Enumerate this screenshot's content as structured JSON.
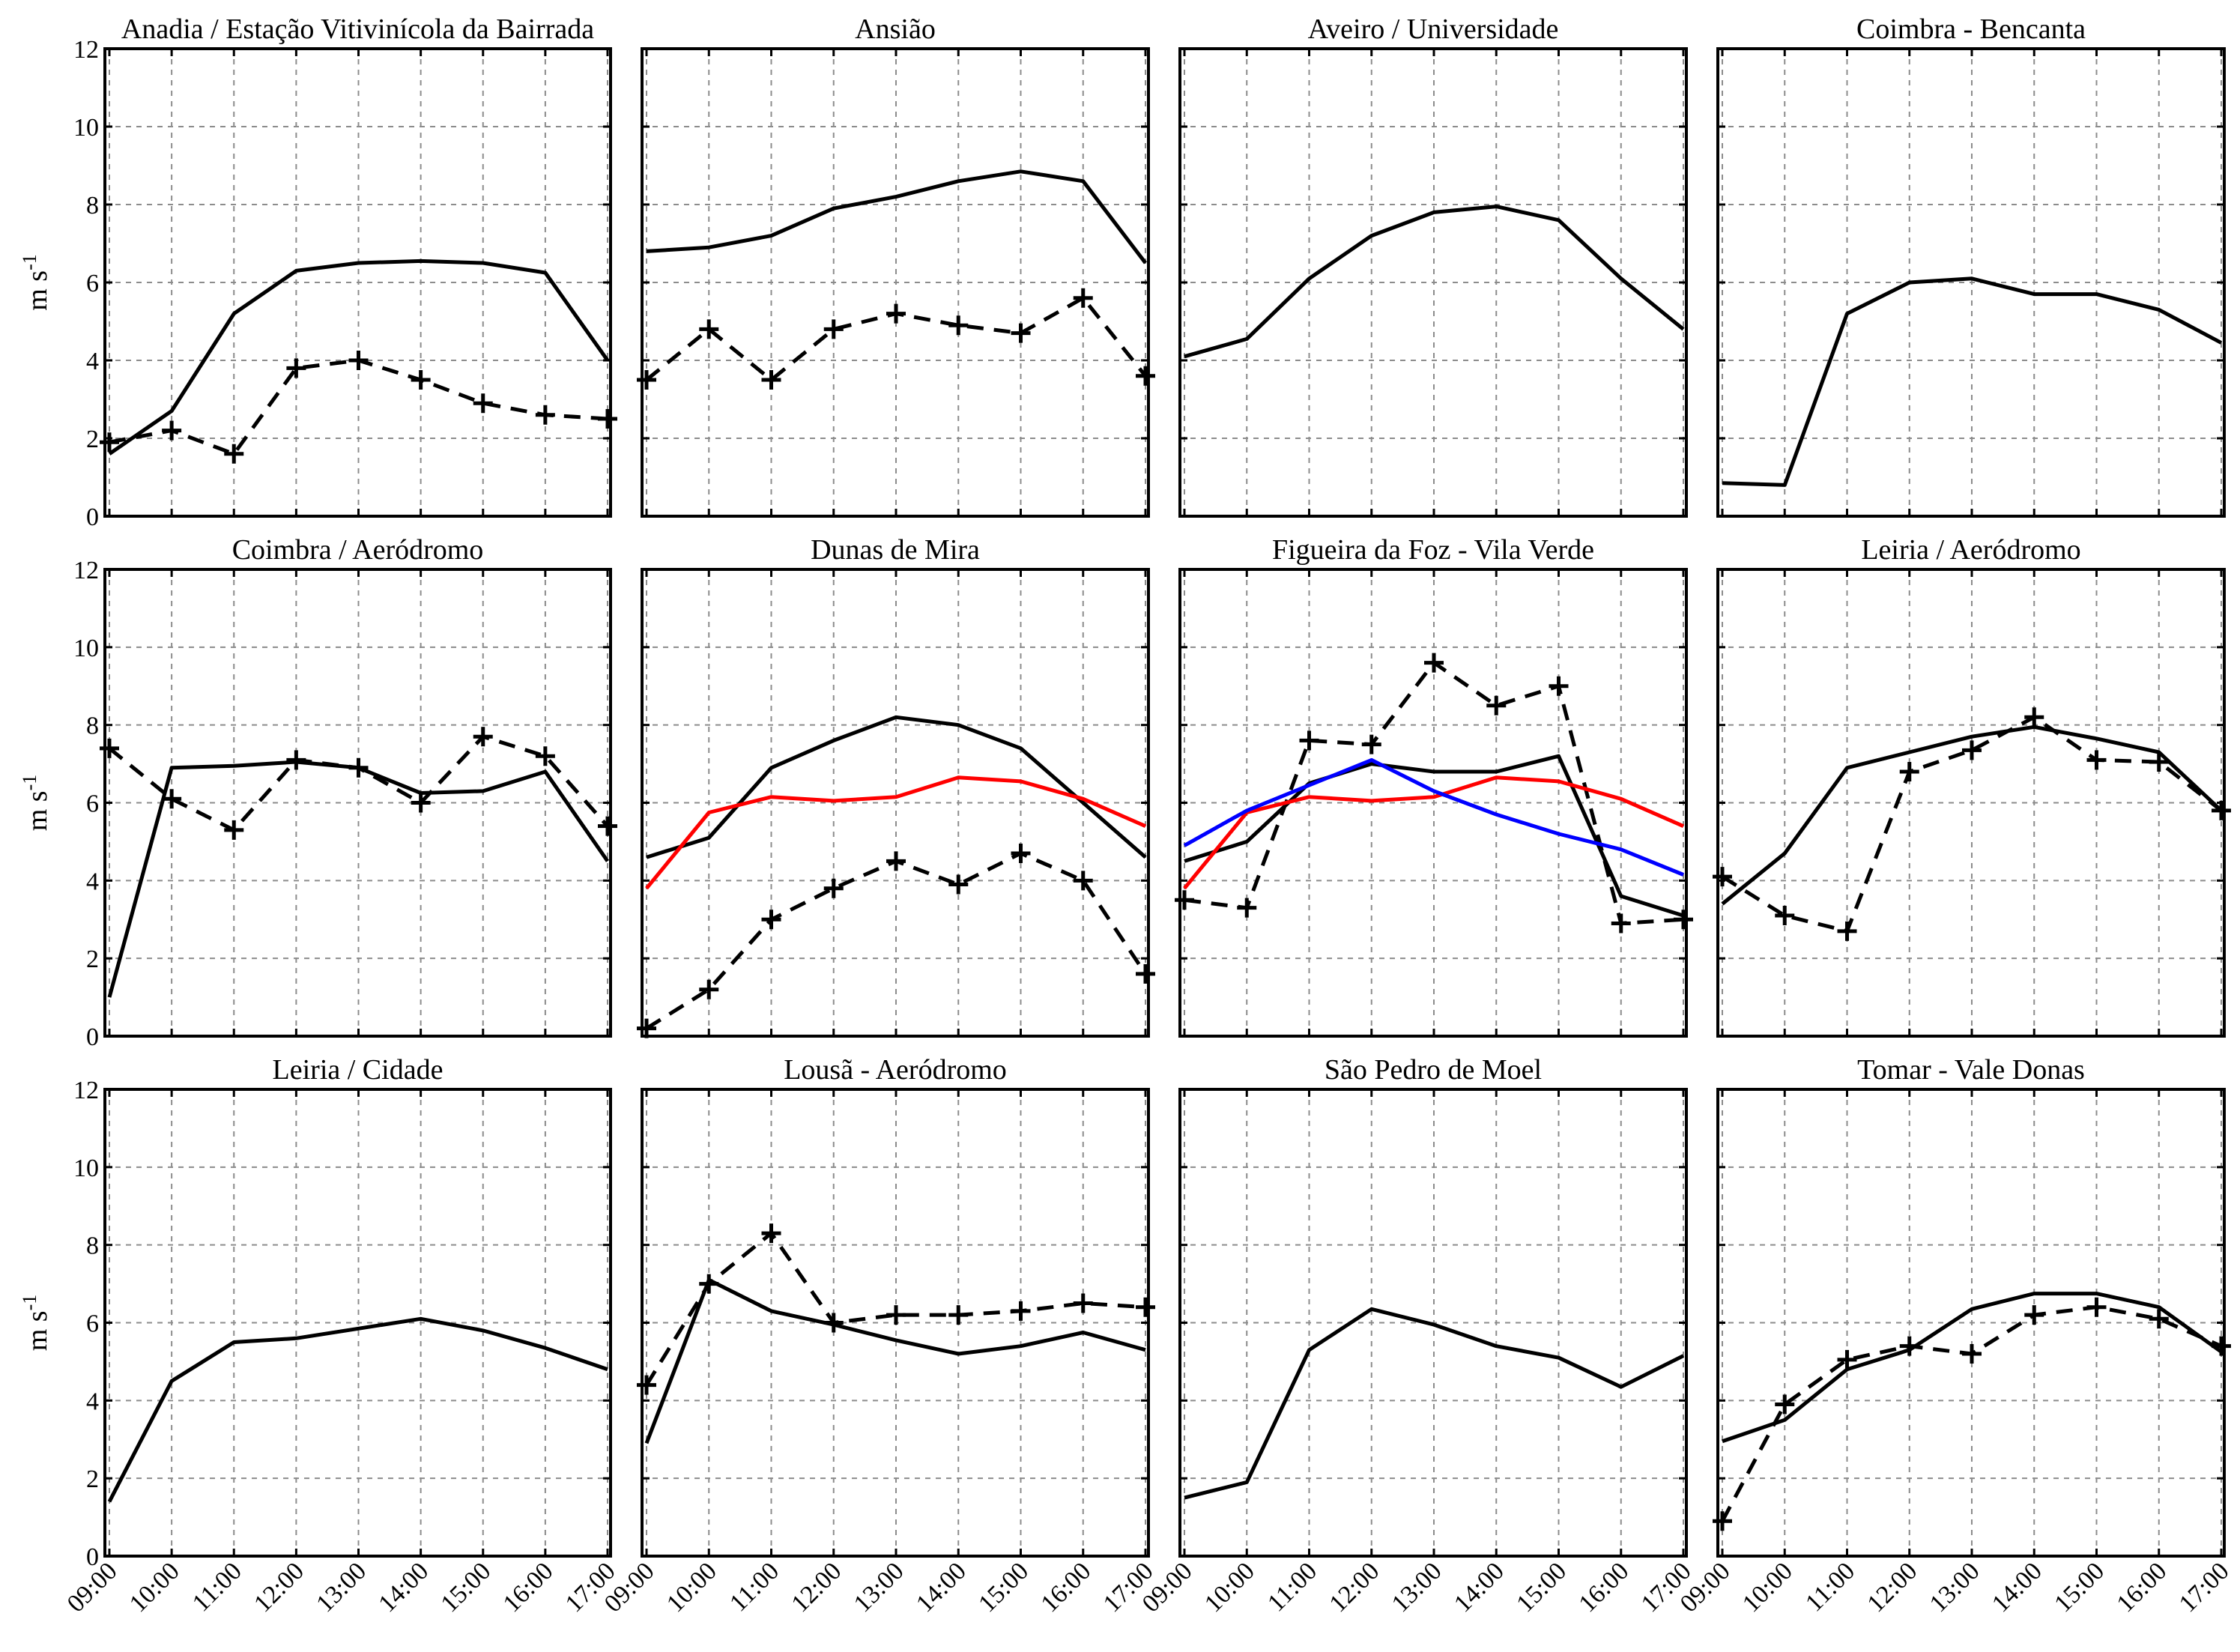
{
  "chart_data": {
    "type": "line",
    "layout": "3x4 grid of subplots",
    "ylabel": "m s",
    "ylabel_superscript": "-1",
    "ylim": [
      0,
      12
    ],
    "yticks": [
      "0",
      "2",
      "4",
      "6",
      "8",
      "10",
      "12"
    ],
    "x": [
      "09:00",
      "10:00",
      "11:00",
      "12:00",
      "13:00",
      "14:00",
      "15:00",
      "16:00",
      "17:00"
    ],
    "series_styles": {
      "black_solid": "#000000",
      "black_dashed_plus": "#000000",
      "red": "#ff0000",
      "blue": "#0000ff"
    },
    "panels": [
      {
        "title": "Anadia / Estação Vitivinícola da Bairrada",
        "series": [
          {
            "name": "black-solid",
            "style": "solid",
            "color": "#000000",
            "values": [
              1.6,
              2.7,
              5.2,
              6.3,
              6.5,
              6.55,
              6.5,
              6.25,
              4.0
            ]
          },
          {
            "name": "black-dashed-plus",
            "style": "dashed-plus",
            "color": "#000000",
            "values": [
              1.9,
              2.2,
              1.6,
              3.8,
              4.0,
              3.5,
              2.9,
              2.6,
              2.5
            ]
          }
        ]
      },
      {
        "title": "Ansião",
        "series": [
          {
            "name": "black-solid",
            "style": "solid",
            "color": "#000000",
            "values": [
              6.8,
              6.9,
              7.2,
              7.9,
              8.2,
              8.6,
              8.85,
              8.6,
              6.5
            ]
          },
          {
            "name": "black-dashed-plus",
            "style": "dashed-plus",
            "color": "#000000",
            "values": [
              3.5,
              4.8,
              3.5,
              4.8,
              5.2,
              4.9,
              4.7,
              5.6,
              3.6
            ]
          }
        ]
      },
      {
        "title": "Aveiro / Universidade",
        "series": [
          {
            "name": "black-solid",
            "style": "solid",
            "color": "#000000",
            "values": [
              4.1,
              4.55,
              6.1,
              7.2,
              7.8,
              7.95,
              7.6,
              6.1,
              4.8
            ]
          }
        ]
      },
      {
        "title": "Coimbra - Bencanta",
        "series": [
          {
            "name": "black-solid",
            "style": "solid",
            "color": "#000000",
            "values": [
              0.85,
              0.8,
              5.2,
              6.0,
              6.1,
              5.7,
              5.7,
              5.3,
              4.45
            ]
          }
        ]
      },
      {
        "title": "Coimbra / Aeródromo",
        "series": [
          {
            "name": "black-solid",
            "style": "solid",
            "color": "#000000",
            "values": [
              1.0,
              6.9,
              6.95,
              7.05,
              6.9,
              6.25,
              6.3,
              6.8,
              4.5
            ]
          },
          {
            "name": "black-dashed-plus",
            "style": "dashed-plus",
            "color": "#000000",
            "values": [
              7.4,
              6.1,
              5.3,
              7.1,
              6.9,
              6.0,
              7.7,
              7.2,
              5.4
            ]
          }
        ]
      },
      {
        "title": "Dunas de Mira",
        "series": [
          {
            "name": "black-solid",
            "style": "solid",
            "color": "#000000",
            "values": [
              4.6,
              5.1,
              6.9,
              7.6,
              8.2,
              8.0,
              7.4,
              6.0,
              4.6
            ]
          },
          {
            "name": "black-dashed-plus",
            "style": "dashed-plus",
            "color": "#000000",
            "values": [
              0.2,
              1.2,
              3.0,
              3.8,
              4.5,
              3.9,
              4.7,
              4.0,
              1.6
            ]
          },
          {
            "name": "red",
            "style": "solid",
            "color": "#ff0000",
            "values": [
              3.8,
              5.75,
              6.15,
              6.05,
              6.15,
              6.65,
              6.55,
              6.1,
              5.4
            ]
          }
        ]
      },
      {
        "title": "Figueira da Foz - Vila Verde",
        "series": [
          {
            "name": "black-solid",
            "style": "solid",
            "color": "#000000",
            "values": [
              4.5,
              5.0,
              6.5,
              7.0,
              6.8,
              6.8,
              7.2,
              3.6,
              3.1
            ]
          },
          {
            "name": "black-dashed-plus",
            "style": "dashed-plus",
            "color": "#000000",
            "values": [
              3.5,
              3.3,
              7.6,
              7.5,
              9.6,
              8.5,
              9.0,
              2.9,
              3.0
            ]
          },
          {
            "name": "red",
            "style": "solid",
            "color": "#ff0000",
            "values": [
              3.8,
              5.75,
              6.15,
              6.05,
              6.15,
              6.65,
              6.55,
              6.1,
              5.4
            ]
          },
          {
            "name": "blue",
            "style": "solid",
            "color": "#0000ff",
            "values": [
              4.9,
              5.8,
              6.45,
              7.1,
              6.3,
              5.7,
              5.2,
              4.8,
              4.15
            ]
          }
        ]
      },
      {
        "title": "Leiria / Aeródromo",
        "series": [
          {
            "name": "black-solid",
            "style": "solid",
            "color": "#000000",
            "values": [
              3.4,
              4.7,
              6.9,
              7.3,
              7.7,
              7.95,
              7.65,
              7.3,
              5.8
            ]
          },
          {
            "name": "black-dashed-plus",
            "style": "dashed-plus",
            "color": "#000000",
            "values": [
              4.1,
              3.1,
              2.7,
              6.8,
              7.35,
              8.2,
              7.1,
              7.05,
              5.8
            ]
          }
        ]
      },
      {
        "title": "Leiria / Cidade",
        "series": [
          {
            "name": "black-solid",
            "style": "solid",
            "color": "#000000",
            "values": [
              1.4,
              4.5,
              5.5,
              5.6,
              5.85,
              6.1,
              5.8,
              5.35,
              4.8
            ]
          }
        ]
      },
      {
        "title": "Lousã - Aeródromo",
        "series": [
          {
            "name": "black-solid",
            "style": "solid",
            "color": "#000000",
            "values": [
              2.9,
              7.1,
              6.3,
              5.95,
              5.55,
              5.2,
              5.4,
              5.75,
              5.3
            ]
          },
          {
            "name": "black-dashed-plus",
            "style": "dashed-plus",
            "color": "#000000",
            "values": [
              4.4,
              7.0,
              8.3,
              6.0,
              6.2,
              6.2,
              6.3,
              6.5,
              6.4
            ]
          }
        ]
      },
      {
        "title": "São Pedro de Moel",
        "series": [
          {
            "name": "black-solid",
            "style": "solid",
            "color": "#000000",
            "values": [
              1.5,
              1.9,
              5.3,
              6.35,
              5.95,
              5.4,
              5.1,
              4.35,
              5.15
            ]
          }
        ]
      },
      {
        "title": "Tomar - Vale Donas",
        "series": [
          {
            "name": "black-solid",
            "style": "solid",
            "color": "#000000",
            "values": [
              2.95,
              3.5,
              4.8,
              5.3,
              6.35,
              6.75,
              6.75,
              6.4,
              5.25
            ]
          },
          {
            "name": "black-dashed-plus",
            "style": "dashed-plus",
            "color": "#000000",
            "values": [
              0.9,
              3.9,
              5.05,
              5.4,
              5.2,
              6.2,
              6.4,
              6.1,
              5.4
            ]
          }
        ]
      }
    ]
  }
}
